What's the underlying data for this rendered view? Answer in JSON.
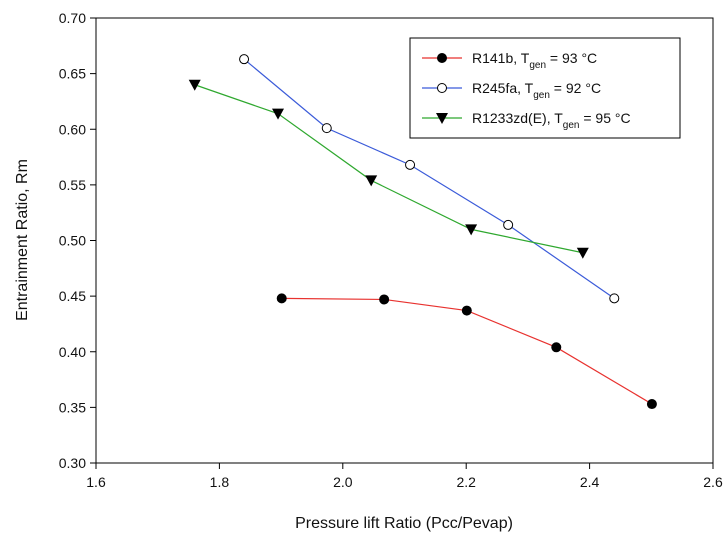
{
  "chart_data": {
    "type": "line",
    "xlabel": "Pressure lift Ratio (Pcc/Pevap)",
    "ylabel": "Entrainment Ratio, Rm",
    "xlim": [
      1.6,
      2.6
    ],
    "xticks": [
      1.6,
      1.8,
      {
        "value": 2,
        "label": "2.0"
      },
      2.2,
      2.4,
      2.6
    ],
    "ylim": [
      0.3,
      0.7
    ],
    "yticks": [
      {
        "value": 0.3,
        "label": "0.30"
      },
      0.35,
      {
        "value": 0.4,
        "label": "0.40"
      },
      0.45,
      {
        "value": 0.5,
        "label": "0.50"
      },
      0.55,
      {
        "value": 0.6,
        "label": "0.60"
      },
      0.65,
      {
        "value": 0.7,
        "label": "0.70"
      }
    ],
    "legend": "upper right",
    "series": [
      {
        "name": [
          "R141b, T",
          "gen",
          " = 93 °C"
        ],
        "color": "#e8322f",
        "marker": "filled-circle",
        "x": [
          1.901,
          2.067,
          2.201,
          2.346,
          2.501
        ],
        "values": [
          0.448,
          0.447,
          0.437,
          0.404,
          0.353
        ]
      },
      {
        "name": [
          "R245fa, T",
          "gen",
          " = 92 °C"
        ],
        "color": "#3b5bd9",
        "marker": "open-circle",
        "x": [
          1.84,
          1.974,
          2.109,
          2.268,
          2.44
        ],
        "values": [
          0.663,
          0.601,
          0.568,
          0.514,
          0.448
        ]
      },
      {
        "name": [
          "R1233zd(E), T",
          "gen",
          " = 95 °C"
        ],
        "color": "#2fa82f",
        "marker": "triangle-down",
        "x": [
          1.76,
          1.895,
          2.046,
          2.208,
          2.389
        ],
        "values": [
          0.64,
          0.614,
          0.554,
          0.51,
          0.489
        ]
      }
    ]
  }
}
